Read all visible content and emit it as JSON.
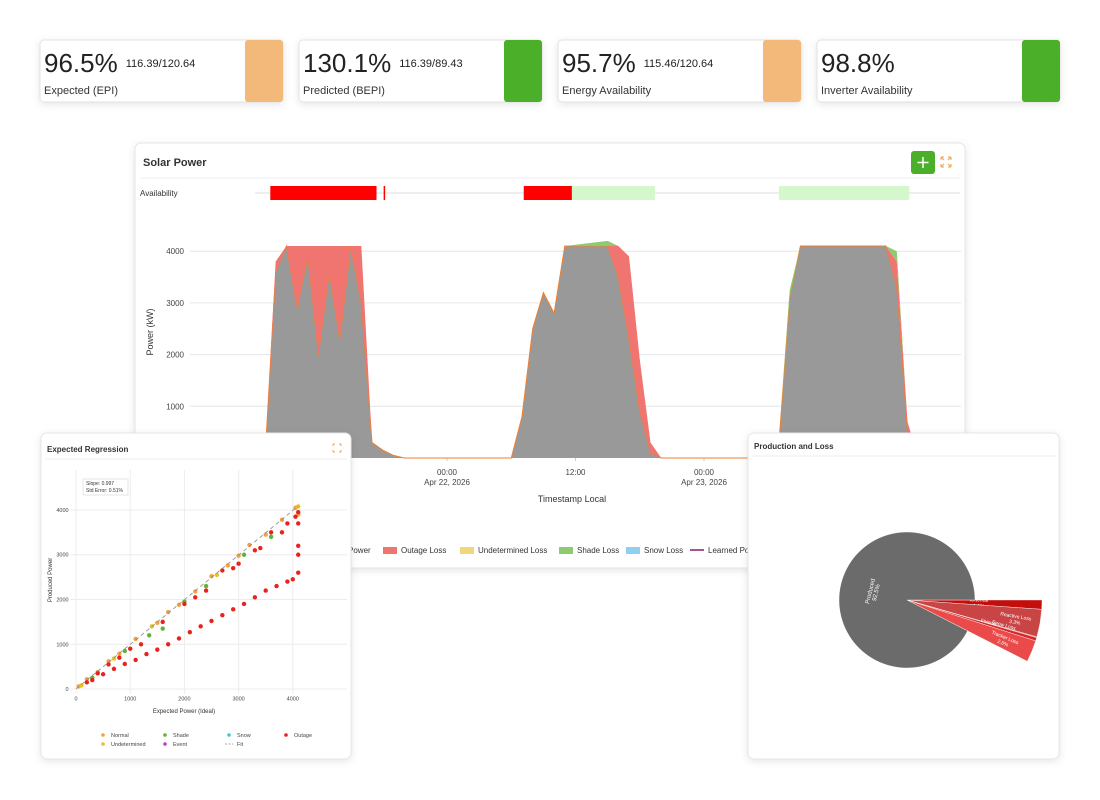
{
  "kpis": [
    {
      "value": "96.5%",
      "detail": "116.39/120.64",
      "label": "Expected (EPI)",
      "color": "#f2b97a"
    },
    {
      "value": "130.1%",
      "detail": "116.39/89.43",
      "label": "Predicted (BEPI)",
      "color": "#4caf2a"
    },
    {
      "value": "95.7%",
      "detail": "115.46/120.64",
      "label": "Energy Availability",
      "color": "#f2b97a"
    },
    {
      "value": "98.8%",
      "label": "Inverter Availability",
      "color": "#4caf2a"
    }
  ],
  "chart_data": [
    {
      "type": "area",
      "title": "Solar Power",
      "ylabel": "Power (kW)",
      "xlabel": "Timestamp Local",
      "availability": {
        "label": "Availability",
        "segments": [
          {
            "start": "2026-04-21T07:30",
            "end": "2026-04-21T17:25",
            "color": "#ff0000"
          },
          {
            "start": "2026-04-21T18:05",
            "end": "2026-04-21T18:12",
            "color": "#ff0000"
          },
          {
            "start": "2026-04-22T07:10",
            "end": "2026-04-22T11:40",
            "color": "#ff0000"
          },
          {
            "start": "2026-04-22T11:40",
            "end": "2026-04-22T19:25",
            "color": "#d4f7cc"
          },
          {
            "start": "2026-04-23T07:00",
            "end": "2026-04-23T19:10",
            "color": "#d4f7cc"
          }
        ]
      },
      "x": [
        "2026-04-21T00:00",
        "2026-04-21T07:00",
        "2026-04-21T08:00",
        "2026-04-21T09:00",
        "2026-04-21T10:00",
        "2026-04-21T11:00",
        "2026-04-21T12:00",
        "2026-04-21T13:00",
        "2026-04-21T14:00",
        "2026-04-21T15:00",
        "2026-04-21T16:00",
        "2026-04-21T17:00",
        "2026-04-21T18:00",
        "2026-04-21T19:00",
        "2026-04-21T20:00",
        "2026-04-22T06:00",
        "2026-04-22T07:00",
        "2026-04-22T08:00",
        "2026-04-22T09:00",
        "2026-04-22T10:00",
        "2026-04-22T11:00",
        "2026-04-22T15:00",
        "2026-04-22T16:00",
        "2026-04-22T17:00",
        "2026-04-22T18:00",
        "2026-04-22T19:00",
        "2026-04-22T20:00",
        "2026-04-23T06:00",
        "2026-04-23T07:00",
        "2026-04-23T08:00",
        "2026-04-23T09:00",
        "2026-04-23T17:00",
        "2026-04-23T18:00",
        "2026-04-23T19:00",
        "2026-04-23T20:00",
        "2026-04-24T00:00"
      ],
      "series": [
        {
          "name": "Power",
          "color": "#999999",
          "outline": "#f07f2f",
          "values": [
            0,
            0,
            3600,
            4100,
            2900,
            3900,
            2000,
            3600,
            2300,
            4100,
            3000,
            300,
            150,
            50,
            0,
            0,
            800,
            2500,
            3200,
            2800,
            4100,
            4100,
            3500,
            2300,
            900,
            100,
            0,
            0,
            300,
            3100,
            4100,
            4100,
            3300,
            500,
            0,
            0
          ]
        },
        {
          "name": "Outage Loss",
          "color": "#f07470",
          "values": [
            0,
            0,
            200,
            0,
            1200,
            200,
            2100,
            500,
            1800,
            0,
            1100,
            0,
            0,
            0,
            0,
            0,
            0,
            0,
            0,
            0,
            0,
            0,
            600,
            1600,
            1000,
            200,
            0,
            0,
            0,
            0,
            0,
            0,
            500,
            200,
            0,
            0
          ]
        },
        {
          "name": "Undetermined Loss",
          "color": "#f0d878"
        },
        {
          "name": "Shade Loss",
          "color": "#8ccc70",
          "values": [
            0,
            0,
            0,
            0,
            0,
            0,
            0,
            0,
            0,
            0,
            0,
            0,
            0,
            0,
            0,
            0,
            0,
            0,
            0,
            0,
            0,
            100,
            0,
            0,
            0,
            0,
            0,
            0,
            0,
            150,
            0,
            0,
            200,
            0,
            0,
            0
          ]
        },
        {
          "name": "Snow Loss",
          "color": "#8ed0ee"
        },
        {
          "name": "Learned Power",
          "color": "#8b1a6b",
          "type": "line"
        }
      ],
      "xlim": [
        "2026-04-21T00:00",
        "2026-04-24T00:00"
      ],
      "xticks": [
        {
          "value": "2026-04-22T00:00",
          "label": "00:00",
          "date": "Apr 22, 2026"
        },
        {
          "value": "2026-04-22T12:00",
          "label": "12:00"
        },
        {
          "value": "2026-04-23T00:00",
          "label": "00:00",
          "date": "Apr 23, 2026"
        }
      ],
      "ylim": [
        0,
        4700
      ],
      "yticks": [
        1000,
        2000,
        3000,
        4000
      ],
      "grid": true
    },
    {
      "type": "scatter",
      "title": "Expected Regression",
      "xlabel": "Expected Power (Ideal)",
      "ylabel": "Produced Power",
      "annotation": [
        "Slope: 0.997",
        "Std Error: 0.51%"
      ],
      "xlim": [
        -100,
        5000
      ],
      "ylim": [
        -100,
        4900
      ],
      "xticks": [
        0,
        1000,
        2000,
        3000,
        4000
      ],
      "yticks": [
        0,
        1000,
        2000,
        3000,
        4000
      ],
      "grid": true,
      "series": [
        {
          "name": "Normal",
          "color": "#f7a040",
          "x": [
            50,
            200,
            400,
            600,
            800,
            1100,
            1500,
            1700,
            1900,
            2200,
            2500,
            2800,
            3000,
            3200,
            3500,
            3800,
            4050,
            4100
          ],
          "values": [
            60,
            220,
            380,
            620,
            790,
            1120,
            1480,
            1720,
            1880,
            2180,
            2520,
            2760,
            2980,
            3220,
            3450,
            3780,
            4050,
            3900
          ]
        },
        {
          "name": "Shade",
          "color": "#5fb33a",
          "x": [
            300,
            900,
            1350,
            1600,
            2000,
            2400,
            3100,
            3600
          ],
          "values": [
            250,
            850,
            1200,
            1350,
            1950,
            2300,
            3000,
            3400
          ]
        },
        {
          "name": "Snow",
          "color": "#40c8d8",
          "x": [],
          "values": []
        },
        {
          "name": "Outage",
          "color": "#e8221c",
          "x": [
            300,
            500,
            700,
            900,
            1100,
            1300,
            1500,
            1700,
            1900,
            2100,
            2300,
            2500,
            2700,
            2900,
            3100,
            3300,
            3500,
            3700,
            3900,
            4000,
            400,
            1000,
            1600,
            2000,
            2400,
            2700,
            3000,
            3300,
            3600,
            3900,
            4050,
            4100,
            4100,
            4100,
            4100,
            4100,
            3800,
            3400,
            2900,
            2200,
            1200,
            600,
            200,
            800
          ],
          "values": [
            200,
            330,
            450,
            560,
            650,
            780,
            880,
            1000,
            1130,
            1270,
            1400,
            1520,
            1650,
            1780,
            1900,
            2050,
            2200,
            2300,
            2400,
            2450,
            350,
            900,
            1500,
            1900,
            2200,
            2650,
            2800,
            3100,
            3500,
            3700,
            3850,
            3700,
            3200,
            3000,
            2600,
            3950,
            3500,
            3150,
            2700,
            2050,
            1000,
            550,
            150,
            700
          ]
        },
        {
          "name": "Undetermined",
          "color": "#e8c020",
          "x": [
            100,
            700,
            1400,
            2600,
            4100
          ],
          "values": [
            80,
            680,
            1400,
            2550,
            4080
          ]
        },
        {
          "name": "Event",
          "color": "#c040c0",
          "x": [],
          "values": []
        },
        {
          "name": "Fit",
          "type": "line",
          "color": "#888888",
          "x": [
            0,
            4100
          ],
          "values": [
            0,
            4088
          ]
        }
      ]
    },
    {
      "type": "pie",
      "title": "Production and Loss",
      "categories": [
        "External",
        "Reactive Loss",
        "Snow Loss",
        "Inverter",
        "Tracker Loss",
        "Produced"
      ],
      "values": [
        1.1,
        3.3,
        0.1,
        0.4,
        2.6,
        92.5
      ],
      "value_labels": [
        "1.1%",
        "3.3%",
        "0.1%",
        "0.4%",
        "2.6%",
        "92.5%"
      ],
      "colors": [
        "#c40d0d",
        "#c94444",
        "#e05555",
        "#d62a2a",
        "#ea4a4a",
        "#6b6b6b"
      ]
    }
  ]
}
